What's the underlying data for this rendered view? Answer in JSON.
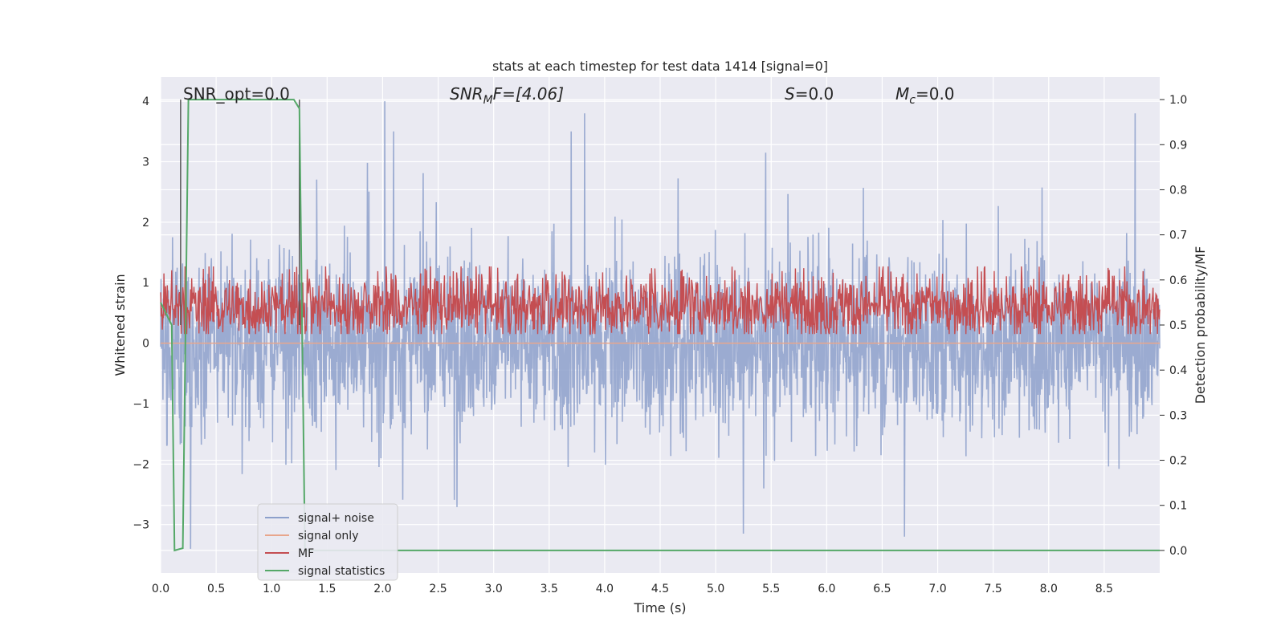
{
  "chart_data": {
    "type": "line",
    "title": "stats at each timestep for test data 1414 [signal=0]",
    "xlabel": "Time (s)",
    "ylabel_left": "Whitened strain",
    "ylabel_right": "Detection probability/MF",
    "xlim": [
      0.0,
      9.0
    ],
    "ylim_left": [
      -3.8,
      4.4
    ],
    "ylim_right": [
      -0.05,
      1.05
    ],
    "grid": true,
    "x_ticks": [
      "0.0",
      "0.5",
      "1.0",
      "1.5",
      "2.0",
      "2.5",
      "3.0",
      "3.5",
      "4.0",
      "4.5",
      "5.0",
      "5.5",
      "6.0",
      "6.5",
      "7.0",
      "7.5",
      "8.0",
      "8.5"
    ],
    "y_ticks_left": [
      "−3",
      "−2",
      "−1",
      "0",
      "1",
      "2",
      "3",
      "4"
    ],
    "y_ticks_right": [
      "0.0",
      "0.1",
      "0.2",
      "0.3",
      "0.4",
      "0.5",
      "0.6",
      "0.7",
      "0.8",
      "0.9",
      "1.0"
    ],
    "annotations": {
      "snr_opt": "SNR_opt=0.0",
      "snr_mf_main": "SNR",
      "snr_mf_sub": "M",
      "snr_mf_rest": "F=[4.06]",
      "s_main": "S",
      "s_rest": "=0.0",
      "mc_main": "M",
      "mc_sub": "c",
      "mc_rest": "=0.0"
    },
    "legend": {
      "position": "lower-left",
      "entries": [
        {
          "label": "signal+ noise",
          "color": "#8da0cb"
        },
        {
          "label": "signal only",
          "color": "#e8a68c"
        },
        {
          "label": "MF",
          "color": "#c44e52"
        },
        {
          "label": "signal statistics",
          "color": "#55a868"
        }
      ]
    },
    "series": [
      {
        "name": "signal+ noise",
        "axis": "left",
        "color": "#8da0cb",
        "kind": "noise",
        "x_range": [
          0.0,
          9.0
        ],
        "approx_range": [
          -3.5,
          4.0
        ],
        "notable_peaks": [
          {
            "x": 2.02,
            "y": 4.0
          },
          {
            "x": 2.1,
            "y": 3.5
          },
          {
            "x": 3.82,
            "y": 3.8
          },
          {
            "x": 3.7,
            "y": 3.5
          },
          {
            "x": 8.78,
            "y": 3.8
          },
          {
            "x": 5.45,
            "y": 3.15
          },
          {
            "x": 5.25,
            "y": -3.15
          },
          {
            "x": 6.7,
            "y": -3.2
          },
          {
            "x": 0.27,
            "y": -3.4
          }
        ]
      },
      {
        "name": "signal only",
        "axis": "left",
        "color": "#e8a68c",
        "x": [
          0.0,
          9.0
        ],
        "values": [
          0.0,
          0.0
        ]
      },
      {
        "name": "MF",
        "axis": "right",
        "color": "#c44e52",
        "kind": "noise",
        "x_range": [
          0.0,
          9.0
        ],
        "approx_range": [
          0.5,
          0.58
        ]
      },
      {
        "name": "signal statistics",
        "axis": "right",
        "color": "#55a868",
        "x": [
          0.0,
          0.1,
          0.125,
          0.2,
          0.25,
          1.2,
          1.25,
          1.3,
          9.0
        ],
        "values": [
          0.55,
          0.5,
          0.0,
          0.005,
          1.0,
          1.0,
          0.98,
          0.0,
          0.0
        ]
      }
    ],
    "vertical_markers": [
      0.18,
      1.25
    ]
  }
}
